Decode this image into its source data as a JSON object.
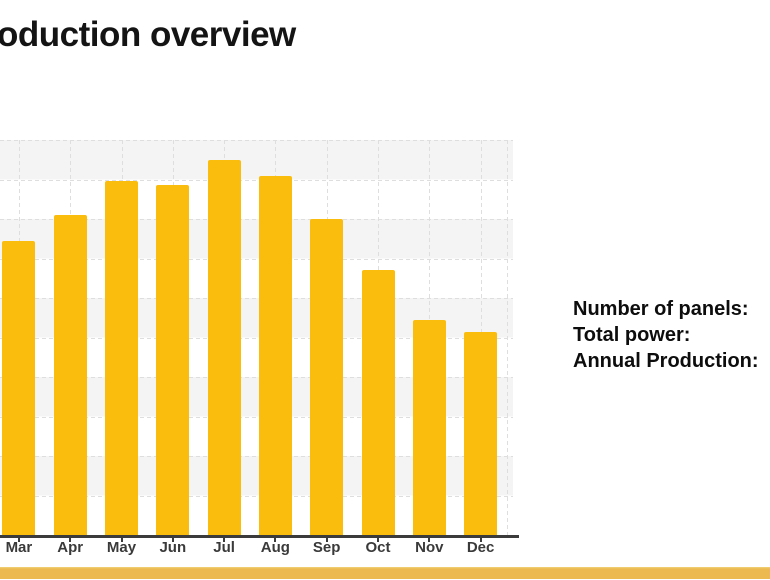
{
  "title": "oduction overview",
  "info_panel": {
    "line1": "Number of panels:",
    "line2": "Total power:",
    "line3": "Annual Production:"
  },
  "chart_data": {
    "type": "bar",
    "categories": [
      "Mar",
      "Apr",
      "May",
      "Jun",
      "Jul",
      "Aug",
      "Sep",
      "Oct",
      "Nov",
      "Dec"
    ],
    "values": [
      7.45,
      8.1,
      8.95,
      8.85,
      9.5,
      9.1,
      8.0,
      6.7,
      5.45,
      5.15
    ],
    "title": "",
    "xlabel": "",
    "ylabel": "",
    "ylim": [
      0,
      10
    ],
    "legend": "none",
    "grid": "dashed light-gray horizontal and vertical lines; alternating gray/white horizontal bands; y-axis labels and Jan-Feb bars cut off by left edge of screenshot",
    "bar_color": "#FBBD0D"
  },
  "colors": {
    "bar": "#FBBD0D",
    "bottom_strip": "#EBB94F",
    "band_gray": "#F4F4F4",
    "grid_line": "#DEDEDE",
    "axis_line": "#3B3B3B",
    "title_text": "#141414",
    "tick_label_text": "#3A3A3A",
    "info_text": "#0D0D0D"
  }
}
